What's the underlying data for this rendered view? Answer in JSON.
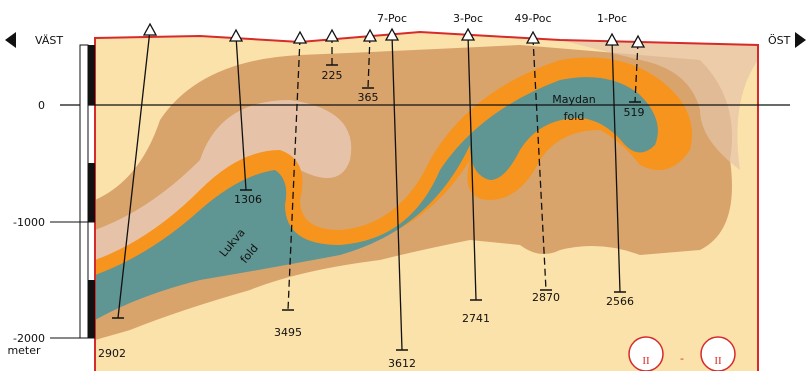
{
  "directions": {
    "west": "VÄST",
    "east": "ÖST"
  },
  "depth_axis": {
    "ticks": [
      0,
      -1000,
      -2000
    ],
    "unit": "meter"
  },
  "wells": [
    {
      "depth": 2902
    },
    {
      "depth": 1306
    },
    {
      "depth": 3495
    },
    {
      "depth": 225
    },
    {
      "depth": 365
    },
    {
      "name": "7-Poc",
      "depth": 3612
    },
    {
      "name": "3-Poc",
      "depth": 2741
    },
    {
      "name": "49-Poc",
      "depth": 2870
    },
    {
      "name": "1-Poc",
      "depth": 2566
    },
    {
      "depth": 519
    }
  ],
  "folds": [
    {
      "name": "Maydan",
      "type": "fold"
    },
    {
      "name": "Lukva",
      "type": "fold"
    }
  ],
  "section": {
    "left": "II",
    "separator": "-",
    "right": "II"
  }
}
